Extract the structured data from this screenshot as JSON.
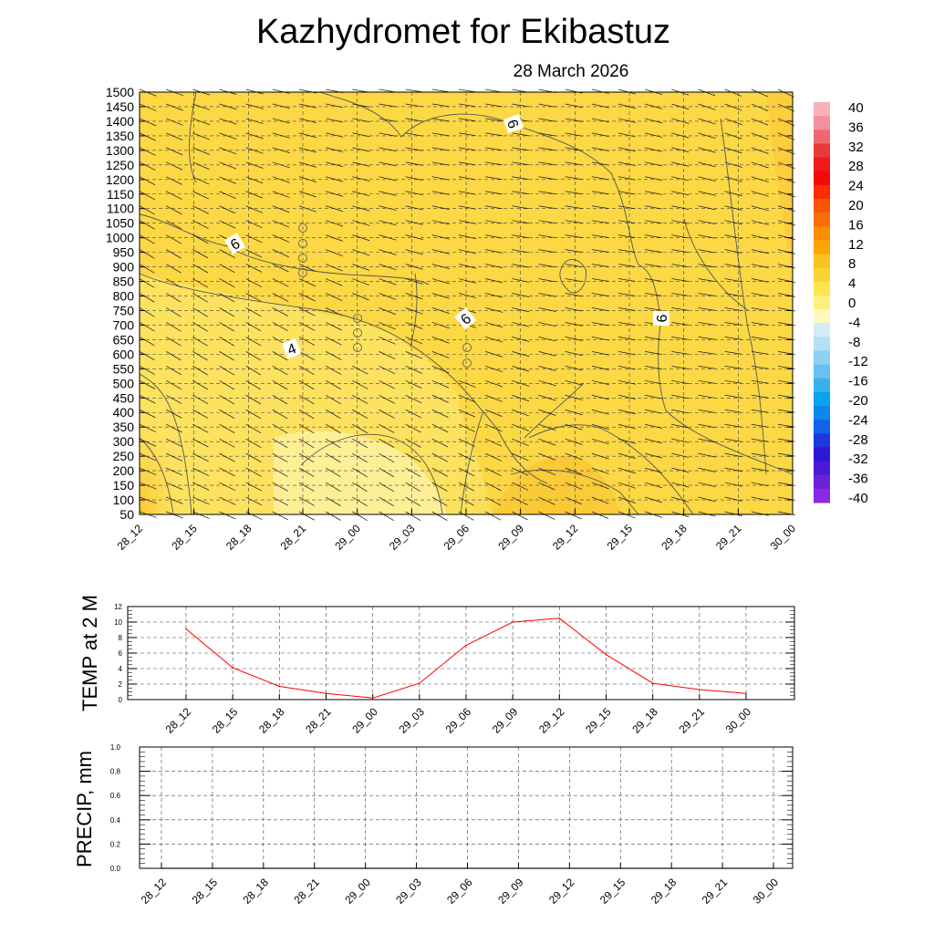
{
  "header": {
    "title": "Kazhydromet  for Ekibastuz",
    "date": "28 March 2026"
  },
  "time_labels": [
    "28_12",
    "28_15",
    "28_18",
    "28_21",
    "29_00",
    "29_03",
    "29_06",
    "29_09",
    "29_12",
    "29_15",
    "29_18",
    "29_21",
    "30_00"
  ],
  "chart_data": [
    {
      "type": "heatmap",
      "title": "Kazhydromet  for Ekibastuz",
      "subtitle": "28 March 2026",
      "xlabel": "",
      "ylabel": "",
      "y_ticks": [
        50,
        100,
        150,
        200,
        250,
        300,
        350,
        400,
        450,
        500,
        550,
        600,
        650,
        700,
        750,
        800,
        850,
        900,
        950,
        1000,
        1050,
        1100,
        1150,
        1200,
        1250,
        1300,
        1350,
        1400,
        1450,
        1500
      ],
      "ylim": [
        50,
        1500
      ],
      "contour_labels": [
        "6",
        "6",
        "4",
        "6",
        "6"
      ],
      "colorbar": {
        "ticks": [
          "40",
          "36",
          "32",
          "28",
          "24",
          "20",
          "16",
          "12",
          "8",
          "4",
          "0",
          "-4",
          "-8",
          "-12",
          "-16",
          "-20",
          "-24",
          "-28",
          "-32",
          "-36",
          "-40"
        ],
        "colors": [
          "#f9b2b8",
          "#f38fa0",
          "#f2666f",
          "#e83a3a",
          "#ee1a1a",
          "#f70808",
          "#fd2d00",
          "#fb5400",
          "#f96e00",
          "#fc8c00",
          "#fca500",
          "#fcc21d",
          "#fcd332",
          "#fde54e",
          "#fdf07c",
          "#fefbba",
          "#d4ecf7",
          "#b4dff4",
          "#8fd0f2",
          "#68c1f0",
          "#37b1ee",
          "#08a3ef",
          "#0d87ee",
          "#0e63e9",
          "#1c38e0",
          "#2c19d7",
          "#4a1ad4",
          "#6a22d6",
          "#8a2ae0"
        ]
      }
    },
    {
      "type": "line",
      "ylabel": "TEMP at 2 M",
      "ylim": [
        0,
        12
      ],
      "y_ticks": [
        "0",
        "2",
        "4",
        "6",
        "8",
        "10",
        "12"
      ],
      "categories": [
        "28_12",
        "28_15",
        "28_18",
        "28_21",
        "29_00",
        "29_03",
        "29_06",
        "29_09",
        "29_12",
        "29_15",
        "29_18",
        "29_21",
        "30_00"
      ],
      "series": [
        {
          "name": "TEMP at 2 M",
          "color": "#ff0000",
          "values": [
            9.1,
            4.1,
            1.7,
            0.8,
            0.2,
            2.1,
            7.0,
            10.0,
            10.5,
            5.8,
            2.1,
            1.3,
            0.8
          ]
        }
      ]
    },
    {
      "type": "line",
      "ylabel": "PRECIP, mm",
      "ylim": [
        0,
        1.0
      ],
      "y_ticks": [
        "0.0",
        "0.2",
        "0.4",
        "0.6",
        "0.8",
        "1.0"
      ],
      "categories": [
        "28_12",
        "28_15",
        "28_18",
        "28_21",
        "29_00",
        "29_03",
        "29_06",
        "29_09",
        "29_12",
        "29_15",
        "29_18",
        "29_21",
        "30_00"
      ],
      "series": [
        {
          "name": "PRECIP, mm",
          "color": "#2e8b2e",
          "values": [
            0,
            0,
            0,
            0,
            0,
            0,
            0,
            0,
            0,
            0,
            0,
            0,
            0
          ]
        }
      ]
    }
  ]
}
